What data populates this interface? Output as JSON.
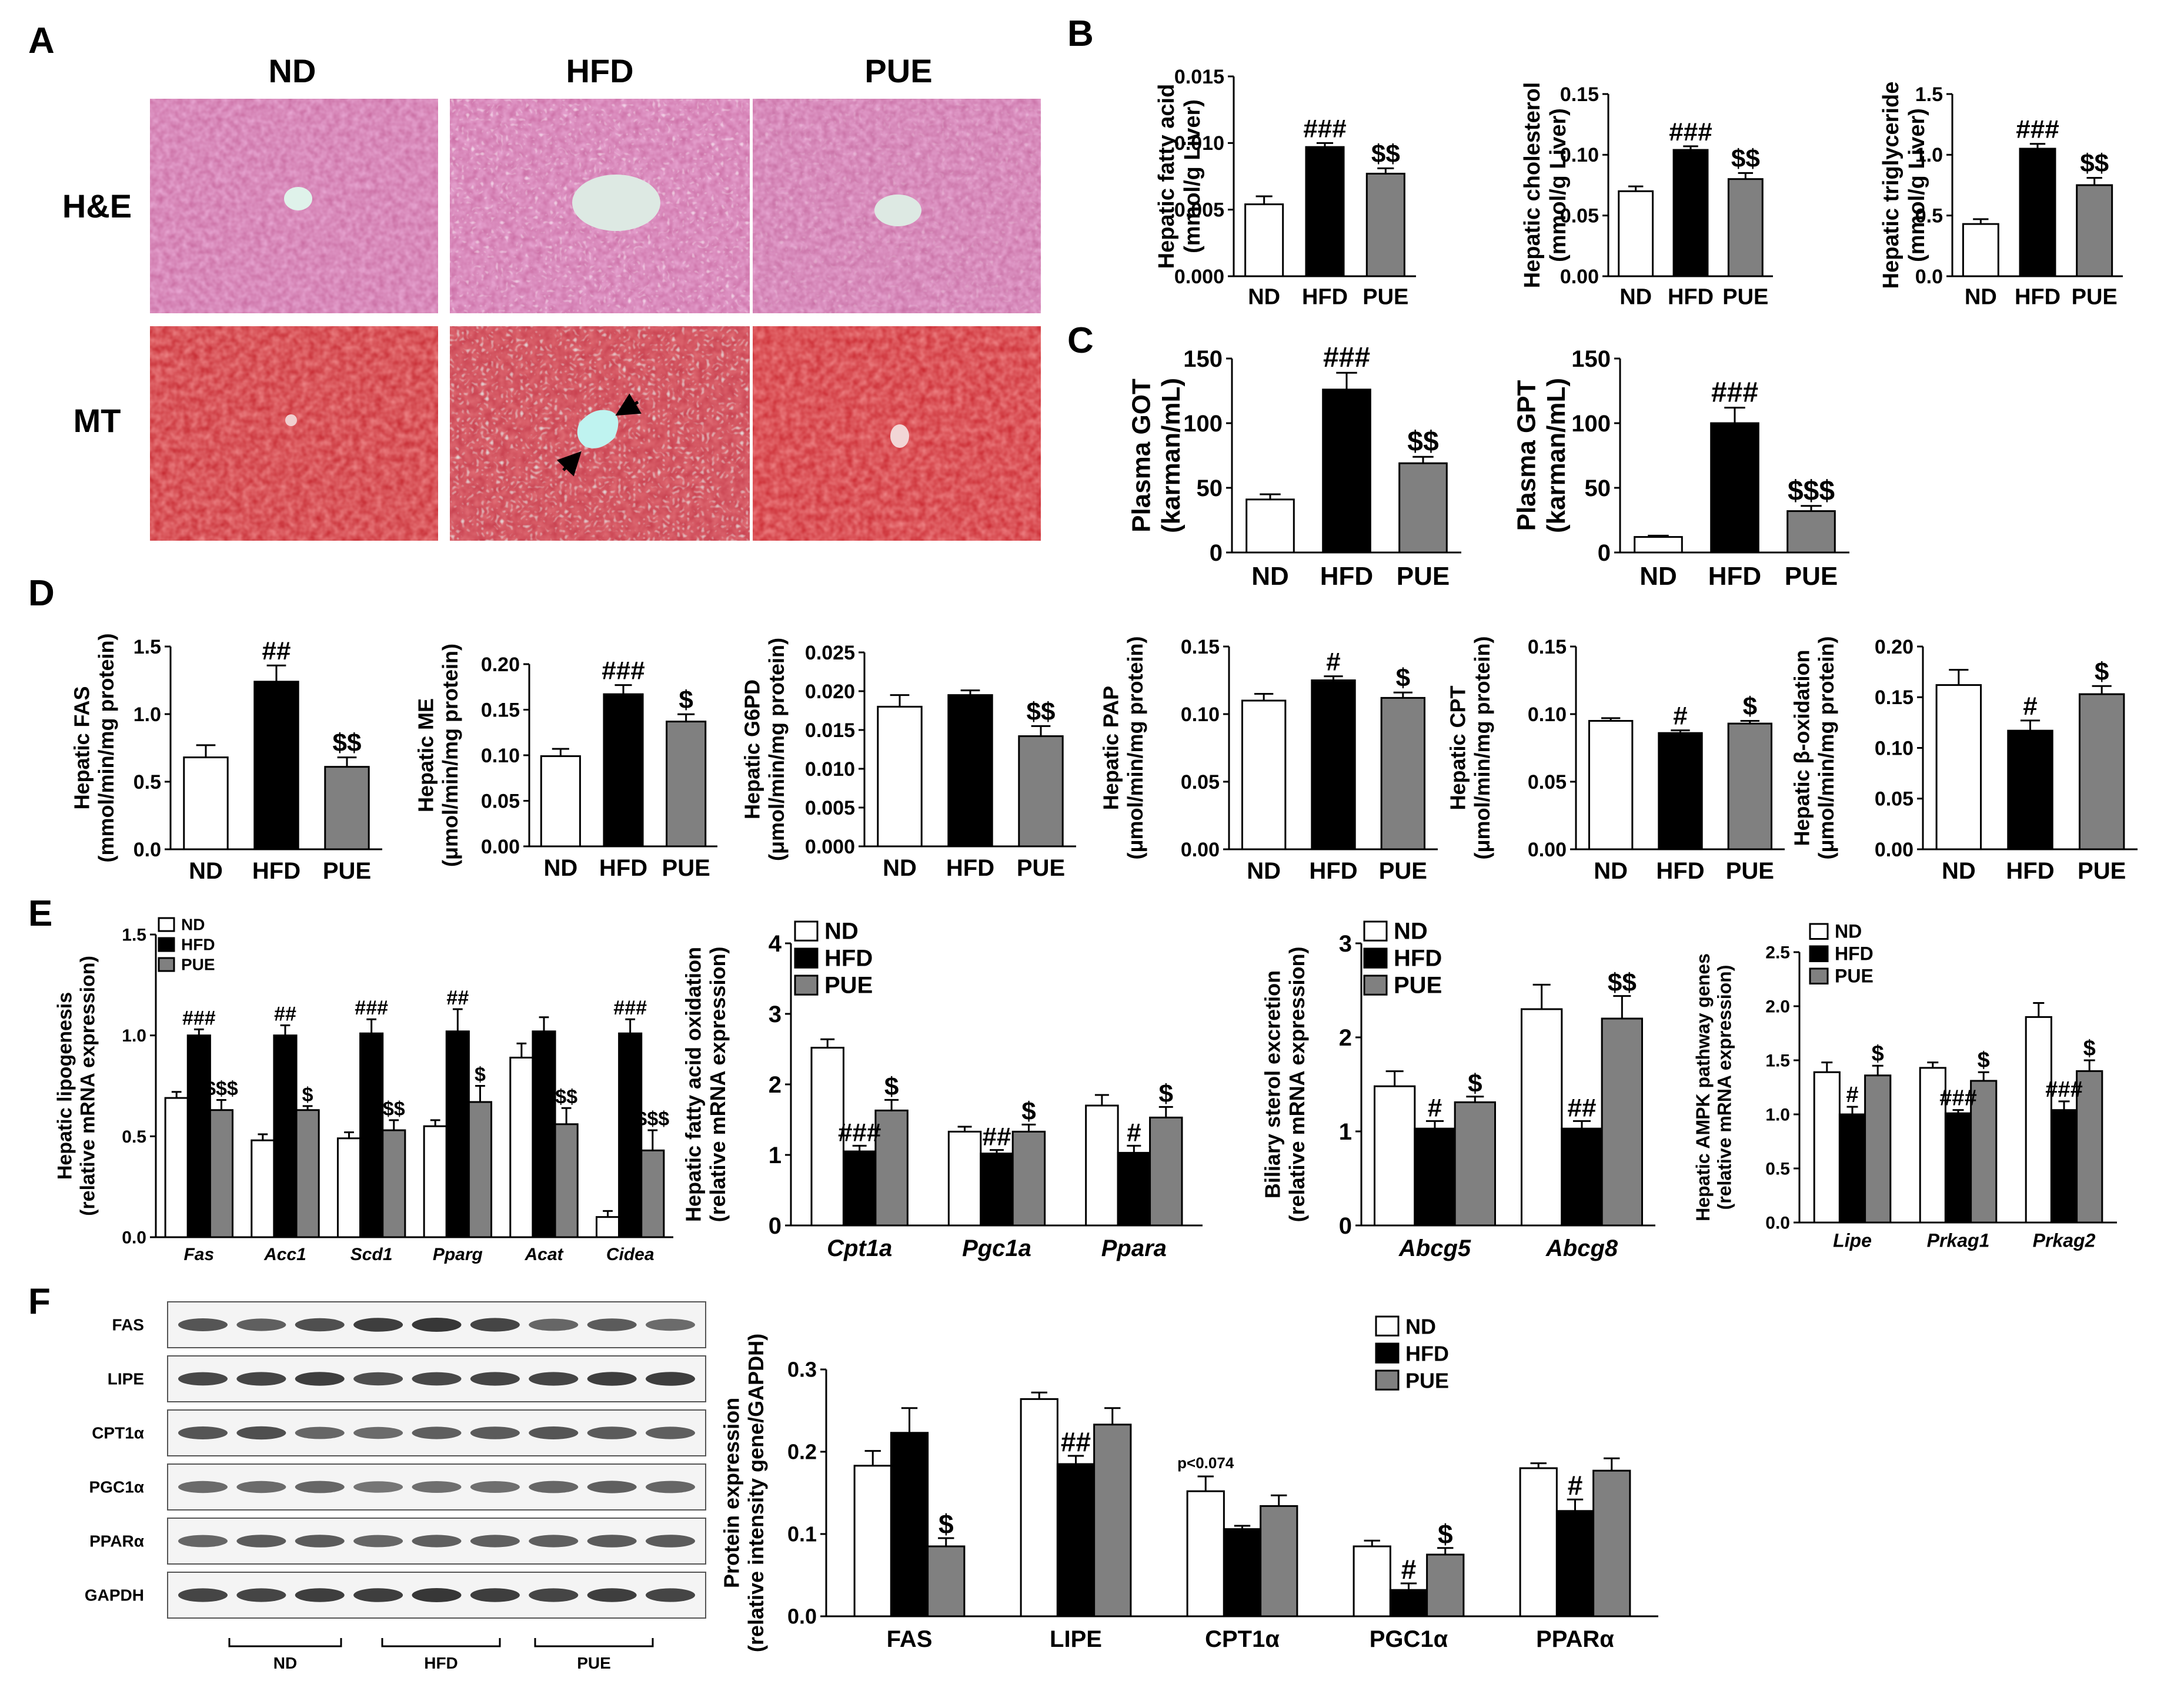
{
  "colors": {
    "nd": "#ffffff",
    "hfd": "#000000",
    "pue": "#808080",
    "axis": "#000000"
  },
  "panel_letters": [
    "A",
    "B",
    "C",
    "D",
    "E",
    "F"
  ],
  "histology": {
    "columns": [
      "ND",
      "HFD",
      "PUE"
    ],
    "rows": [
      "H&E",
      "MT"
    ]
  },
  "western_blot": {
    "bands": [
      "FAS",
      "LIPE",
      "CPT1α",
      "PGC1α",
      "PPARα",
      "GAPDH"
    ],
    "groups": [
      "ND",
      "HFD",
      "PUE"
    ]
  },
  "chart_data": [
    {
      "id": "B1",
      "type": "bar",
      "categories": [
        "ND",
        "HFD",
        "PUE"
      ],
      "values": [
        0.0054,
        0.0097,
        0.0077
      ],
      "errors": [
        0.0006,
        0.0003,
        0.0004
      ],
      "ylabel": [
        "Hepatic fatty acid",
        "(mmol/g Liver)"
      ],
      "ylim": [
        0,
        0.015
      ],
      "ticks": [
        0.0,
        0.005,
        0.01,
        0.015
      ],
      "tick_labels": [
        "0.000",
        "0.005",
        "0.010",
        "0.015"
      ],
      "annotations": [
        "",
        "###",
        "$$"
      ]
    },
    {
      "id": "B2",
      "type": "bar",
      "categories": [
        "ND",
        "HFD",
        "PUE"
      ],
      "values": [
        0.07,
        0.104,
        0.08
      ],
      "errors": [
        0.004,
        0.003,
        0.005
      ],
      "ylabel": [
        "Hepatic cholesterol",
        "(mmol/g Liver)"
      ],
      "ylim": [
        0,
        0.15
      ],
      "ticks": [
        0.0,
        0.05,
        0.1,
        0.15
      ],
      "tick_labels": [
        "0.00",
        "0.05",
        "0.10",
        "0.15"
      ],
      "annotations": [
        "",
        "###",
        "$$"
      ]
    },
    {
      "id": "B3",
      "type": "bar",
      "categories": [
        "ND",
        "HFD",
        "PUE"
      ],
      "values": [
        0.43,
        1.05,
        0.75
      ],
      "errors": [
        0.04,
        0.04,
        0.06
      ],
      "ylabel": [
        "Hepatic triglyceride",
        "(mmol/g Liver)"
      ],
      "ylim": [
        0,
        1.5
      ],
      "ticks": [
        0.0,
        0.5,
        1.0,
        1.5
      ],
      "tick_labels": [
        "0.0",
        "0.5",
        "1.0",
        "1.5"
      ],
      "annotations": [
        "",
        "###",
        "$$"
      ]
    },
    {
      "id": "C1",
      "type": "bar",
      "categories": [
        "ND",
        "HFD",
        "PUE"
      ],
      "values": [
        41,
        126,
        69
      ],
      "errors": [
        4,
        13,
        5
      ],
      "ylabel": [
        "Plasma GOT",
        "(karman/mL)"
      ],
      "ylim": [
        0,
        150
      ],
      "ticks": [
        0,
        50,
        100,
        150
      ],
      "tick_labels": [
        "0",
        "50",
        "100",
        "150"
      ],
      "annotations": [
        "",
        "###",
        "$$"
      ]
    },
    {
      "id": "C2",
      "type": "bar",
      "categories": [
        "ND",
        "HFD",
        "PUE"
      ],
      "values": [
        12,
        100,
        32
      ],
      "errors": [
        1,
        12,
        4
      ],
      "ylabel": [
        "Plasma GPT",
        "(karman/mL)"
      ],
      "ylim": [
        0,
        150
      ],
      "ticks": [
        0,
        50,
        100,
        150
      ],
      "tick_labels": [
        "0",
        "50",
        "100",
        "150"
      ],
      "annotations": [
        "",
        "###",
        "$$$"
      ]
    },
    {
      "id": "D1",
      "type": "bar",
      "categories": [
        "ND",
        "HFD",
        "PUE"
      ],
      "values": [
        0.68,
        1.24,
        0.61
      ],
      "errors": [
        0.09,
        0.12,
        0.07
      ],
      "ylabel": [
        "Hepatic FAS",
        "(mmol/min/mg protein)"
      ],
      "ylim": [
        0,
        1.5
      ],
      "ticks": [
        0.0,
        0.5,
        1.0,
        1.5
      ],
      "tick_labels": [
        "0.0",
        "0.5",
        "1.0",
        "1.5"
      ],
      "annotations": [
        "",
        "##",
        "$$"
      ]
    },
    {
      "id": "D2",
      "type": "bar",
      "categories": [
        "ND",
        "HFD",
        "PUE"
      ],
      "values": [
        0.099,
        0.167,
        0.137
      ],
      "errors": [
        0.008,
        0.01,
        0.008
      ],
      "ylabel": [
        "Hepatic ME",
        "(μmol/min/mg protein)"
      ],
      "ylim": [
        0,
        0.2
      ],
      "ticks": [
        0.0,
        0.05,
        0.1,
        0.15,
        0.2
      ],
      "tick_labels": [
        "0.00",
        "0.05",
        "0.10",
        "0.15",
        "0.20"
      ],
      "annotations": [
        "",
        "###",
        "$"
      ]
    },
    {
      "id": "D3",
      "type": "bar",
      "categories": [
        "ND",
        "HFD",
        "PUE"
      ],
      "values": [
        0.018,
        0.0195,
        0.0142
      ],
      "errors": [
        0.0015,
        0.0006,
        0.0013
      ],
      "ylabel": [
        "Hepatic G6PD",
        "(μmol/min/mg protein)"
      ],
      "ylim": [
        0,
        0.025
      ],
      "ticks": [
        0.0,
        0.005,
        0.01,
        0.015,
        0.02,
        0.025
      ],
      "tick_labels": [
        "0.000",
        "0.005",
        "0.010",
        "0.015",
        "0.020",
        "0.025"
      ],
      "annotations": [
        "",
        "",
        "$$"
      ]
    },
    {
      "id": "D4",
      "type": "bar",
      "categories": [
        "ND",
        "HFD",
        "PUE"
      ],
      "values": [
        0.11,
        0.125,
        0.112
      ],
      "errors": [
        0.005,
        0.003,
        0.004
      ],
      "ylabel": [
        "Hepatic PAP",
        "(μmol/min/mg protein)"
      ],
      "ylim": [
        0,
        0.15
      ],
      "ticks": [
        0.0,
        0.05,
        0.1,
        0.15
      ],
      "tick_labels": [
        "0.00",
        "0.05",
        "0.10",
        "0.15"
      ],
      "annotations": [
        "",
        "#",
        "$"
      ]
    },
    {
      "id": "D5",
      "type": "bar",
      "categories": [
        "ND",
        "HFD",
        "PUE"
      ],
      "values": [
        0.095,
        0.086,
        0.093
      ],
      "errors": [
        0.002,
        0.002,
        0.002
      ],
      "ylabel": [
        "Hepatic CPT",
        "(μmol/min/mg protein)"
      ],
      "ylim": [
        0,
        0.15
      ],
      "ticks": [
        0.0,
        0.05,
        0.1,
        0.15
      ],
      "tick_labels": [
        "0.00",
        "0.05",
        "0.10",
        "0.15"
      ],
      "annotations": [
        "",
        "#",
        "$"
      ]
    },
    {
      "id": "D6",
      "type": "bar",
      "categories": [
        "ND",
        "HFD",
        "PUE"
      ],
      "values": [
        0.162,
        0.117,
        0.153
      ],
      "errors": [
        0.015,
        0.01,
        0.008
      ],
      "ylabel": [
        "Hepatic β-oxidation",
        "(μmol/min/mg protein)"
      ],
      "ylim": [
        0,
        0.2
      ],
      "ticks": [
        0.0,
        0.05,
        0.1,
        0.15,
        0.2
      ],
      "tick_labels": [
        "0.00",
        "0.05",
        "0.10",
        "0.15",
        "0.20"
      ],
      "annotations": [
        "",
        "#",
        "$"
      ]
    },
    {
      "id": "E1",
      "type": "bar",
      "categories": [
        "Fas",
        "Acc1",
        "Scd1",
        "Pparg",
        "Acat",
        "Cidea"
      ],
      "series": [
        {
          "name": "ND",
          "values": [
            0.69,
            0.48,
            0.49,
            0.55,
            0.89,
            0.1
          ],
          "errors": [
            0.03,
            0.03,
            0.03,
            0.03,
            0.07,
            0.03
          ]
        },
        {
          "name": "HFD",
          "values": [
            1.0,
            1.0,
            1.01,
            1.02,
            1.02,
            1.01
          ],
          "errors": [
            0.03,
            0.05,
            0.07,
            0.11,
            0.07,
            0.07
          ]
        },
        {
          "name": "PUE",
          "values": [
            0.63,
            0.63,
            0.53,
            0.67,
            0.56,
            0.43
          ],
          "errors": [
            0.05,
            0.02,
            0.05,
            0.08,
            0.08,
            0.1
          ]
        }
      ],
      "ylabel": [
        "Hepatic lipogenesis",
        "(relative mRNA expression)"
      ],
      "ylim": [
        0,
        1.5
      ],
      "ticks": [
        0.0,
        0.5,
        1.0,
        1.5
      ],
      "tick_labels": [
        "0.0",
        "0.5",
        "1.0",
        "1.5"
      ],
      "annotations": [
        {
          "hfd": "###",
          "pue": "$$$"
        },
        {
          "hfd": "##",
          "pue": "$"
        },
        {
          "hfd": "###",
          "pue": "$$"
        },
        {
          "hfd": "##",
          "pue": "$"
        },
        {
          "hfd": "",
          "pue": "$$"
        },
        {
          "hfd": "###",
          "pue": "$$$"
        }
      ]
    },
    {
      "id": "E2",
      "type": "bar",
      "categories": [
        "Cpt1a",
        "Pgc1a",
        "Ppara"
      ],
      "series": [
        {
          "name": "ND",
          "values": [
            2.52,
            1.33,
            1.7
          ],
          "errors": [
            0.12,
            0.07,
            0.15
          ]
        },
        {
          "name": "HFD",
          "values": [
            1.05,
            1.02,
            1.03
          ],
          "errors": [
            0.08,
            0.05,
            0.1
          ]
        },
        {
          "name": "PUE",
          "values": [
            1.63,
            1.33,
            1.53
          ],
          "errors": [
            0.15,
            0.1,
            0.15
          ]
        }
      ],
      "ylabel": [
        "Hepatic fatty acid oxidation",
        "(relative mRNA expression)"
      ],
      "ylim": [
        0,
        4
      ],
      "ticks": [
        0,
        1,
        2,
        3,
        4
      ],
      "tick_labels": [
        "0",
        "1",
        "2",
        "3",
        "4"
      ],
      "annotations": [
        {
          "hfd": "###",
          "pue": "$"
        },
        {
          "hfd": "##",
          "pue": "$"
        },
        {
          "hfd": "#",
          "pue": "$"
        }
      ]
    },
    {
      "id": "E3",
      "type": "bar",
      "categories": [
        "Abcg5",
        "Abcg8"
      ],
      "series": [
        {
          "name": "ND",
          "values": [
            1.48,
            2.3
          ],
          "errors": [
            0.16,
            0.26
          ]
        },
        {
          "name": "HFD",
          "values": [
            1.03,
            1.03
          ],
          "errors": [
            0.08,
            0.08
          ]
        },
        {
          "name": "PUE",
          "values": [
            1.31,
            2.2
          ],
          "errors": [
            0.06,
            0.24
          ]
        }
      ],
      "ylabel": [
        "Biliary sterol excretion",
        "(relative mRNA expression)"
      ],
      "ylim": [
        0,
        3
      ],
      "ticks": [
        0,
        1,
        2,
        3
      ],
      "tick_labels": [
        "0",
        "1",
        "2",
        "3"
      ],
      "annotations": [
        {
          "hfd": "#",
          "pue": "$"
        },
        {
          "hfd": "##",
          "pue": "$$"
        }
      ]
    },
    {
      "id": "E4",
      "type": "bar",
      "categories": [
        "Lipe",
        "Prkag1",
        "Prkag2"
      ],
      "series": [
        {
          "name": "ND",
          "values": [
            1.39,
            1.43,
            1.9
          ],
          "errors": [
            0.09,
            0.05,
            0.13
          ]
        },
        {
          "name": "HFD",
          "values": [
            1.0,
            1.01,
            1.04
          ],
          "errors": [
            0.07,
            0.03,
            0.08
          ]
        },
        {
          "name": "PUE",
          "values": [
            1.36,
            1.31,
            1.4
          ],
          "errors": [
            0.09,
            0.08,
            0.1
          ]
        }
      ],
      "ylabel": [
        "Hepatic AMPK pathway genes",
        "(relative mRNA expression)"
      ],
      "ylim": [
        0,
        2.5
      ],
      "ticks": [
        0.0,
        0.5,
        1.0,
        1.5,
        2.0,
        2.5
      ],
      "tick_labels": [
        "0.0",
        "0.5",
        "1.0",
        "1.5",
        "2.0",
        "2.5"
      ],
      "annotations": [
        {
          "hfd": "#",
          "pue": "$"
        },
        {
          "hfd": "###",
          "pue": "$"
        },
        {
          "hfd": "###",
          "pue": "$"
        }
      ]
    },
    {
      "id": "F1",
      "type": "bar",
      "categories": [
        "FAS",
        "LIPE",
        "CPT1α",
        "PGC1α",
        "PPARα"
      ],
      "series": [
        {
          "name": "ND",
          "values": [
            0.183,
            0.264,
            0.152,
            0.085,
            0.18
          ],
          "errors": [
            0.018,
            0.008,
            0.018,
            0.007,
            0.006
          ]
        },
        {
          "name": "HFD",
          "values": [
            0.223,
            0.185,
            0.106,
            0.032,
            0.128
          ],
          "errors": [
            0.03,
            0.01,
            0.004,
            0.008,
            0.014
          ]
        },
        {
          "name": "PUE",
          "values": [
            0.085,
            0.233,
            0.134,
            0.075,
            0.177
          ],
          "errors": [
            0.01,
            0.02,
            0.013,
            0.008,
            0.015
          ]
        }
      ],
      "ylabel": [
        "Protein expression",
        "(relative intensity gene/GAPDH)"
      ],
      "ylim": [
        0,
        0.3
      ],
      "ticks": [
        0.0,
        0.1,
        0.2,
        0.3
      ],
      "tick_labels": [
        "0.0",
        "0.1",
        "0.2",
        "0.3"
      ],
      "annotations": [
        {
          "hfd": "",
          "pue": "$"
        },
        {
          "hfd": "##",
          "pue": ""
        },
        {
          "hfd": "",
          "pue": ""
        },
        {
          "hfd": "#",
          "pue": "$"
        },
        {
          "hfd": "#",
          "pue": ""
        }
      ],
      "extra_label": "p<0.074"
    }
  ]
}
